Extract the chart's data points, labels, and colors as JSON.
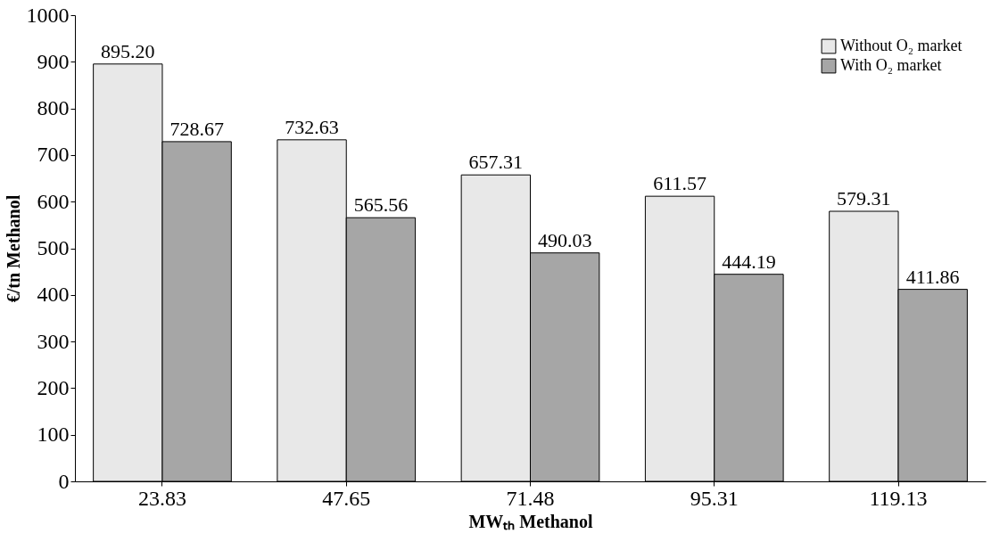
{
  "chart_data": {
    "type": "bar",
    "xlabel": "MWₜₕ Methanol",
    "ylabel": "€/tn Methanol",
    "categories": [
      "23.83",
      "47.65",
      "71.48",
      "95.31",
      "119.13"
    ],
    "series": [
      {
        "name": "Without O₂ market",
        "color": "#e8e8e8",
        "values": [
          895.2,
          732.63,
          657.31,
          611.57,
          579.31
        ],
        "value_labels": [
          "895.20",
          "732.63",
          "657.31",
          "611.57",
          "579.31"
        ]
      },
      {
        "name": "With O₂ market",
        "color": "#a6a6a6",
        "values": [
          728.67,
          565.56,
          490.03,
          444.19,
          411.86
        ],
        "value_labels": [
          "728.67",
          "565.56",
          "490.03",
          "444.19",
          "411.86"
        ]
      }
    ],
    "ylim": [
      0,
      1000
    ],
    "yticks": [
      0,
      100,
      200,
      300,
      400,
      500,
      600,
      700,
      800,
      900,
      1000
    ],
    "grid": false,
    "legend": "top right"
  }
}
